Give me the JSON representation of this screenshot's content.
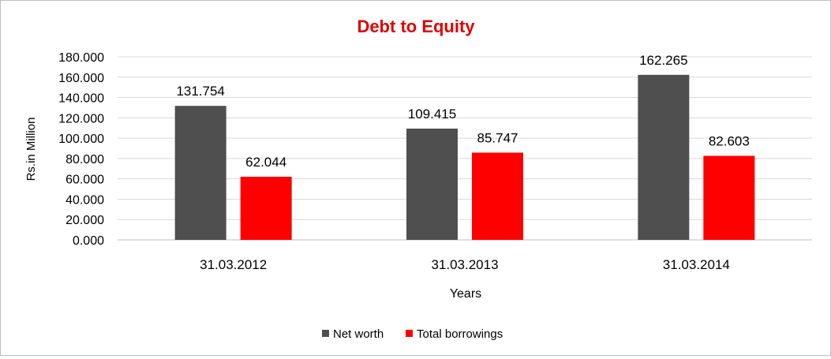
{
  "chart_data": {
    "type": "bar",
    "title": "Debt to Equity",
    "xlabel": "Years",
    "ylabel": "Rs.in Million",
    "categories": [
      "31.03.2012",
      "31.03.2013",
      "31.03.2014"
    ],
    "series": [
      {
        "name": "Net worth",
        "values": [
          131.754,
          109.415,
          162.265
        ],
        "labels": [
          "131.754",
          "109.415",
          "162.265"
        ],
        "color": "#4f4f4f"
      },
      {
        "name": "Total borrowings",
        "values": [
          62.044,
          85.747,
          82.603
        ],
        "labels": [
          "62.044",
          "85.747",
          "82.603"
        ],
        "color": "#ff0000"
      }
    ],
    "ylim": [
      0,
      180
    ],
    "yticks": [
      "0.000",
      "20.000",
      "40.000",
      "60.000",
      "80.000",
      "100.000",
      "120.000",
      "140.000",
      "160.000",
      "180.000"
    ],
    "grid": true,
    "legend": "bottom",
    "title_color": "#e00000"
  }
}
